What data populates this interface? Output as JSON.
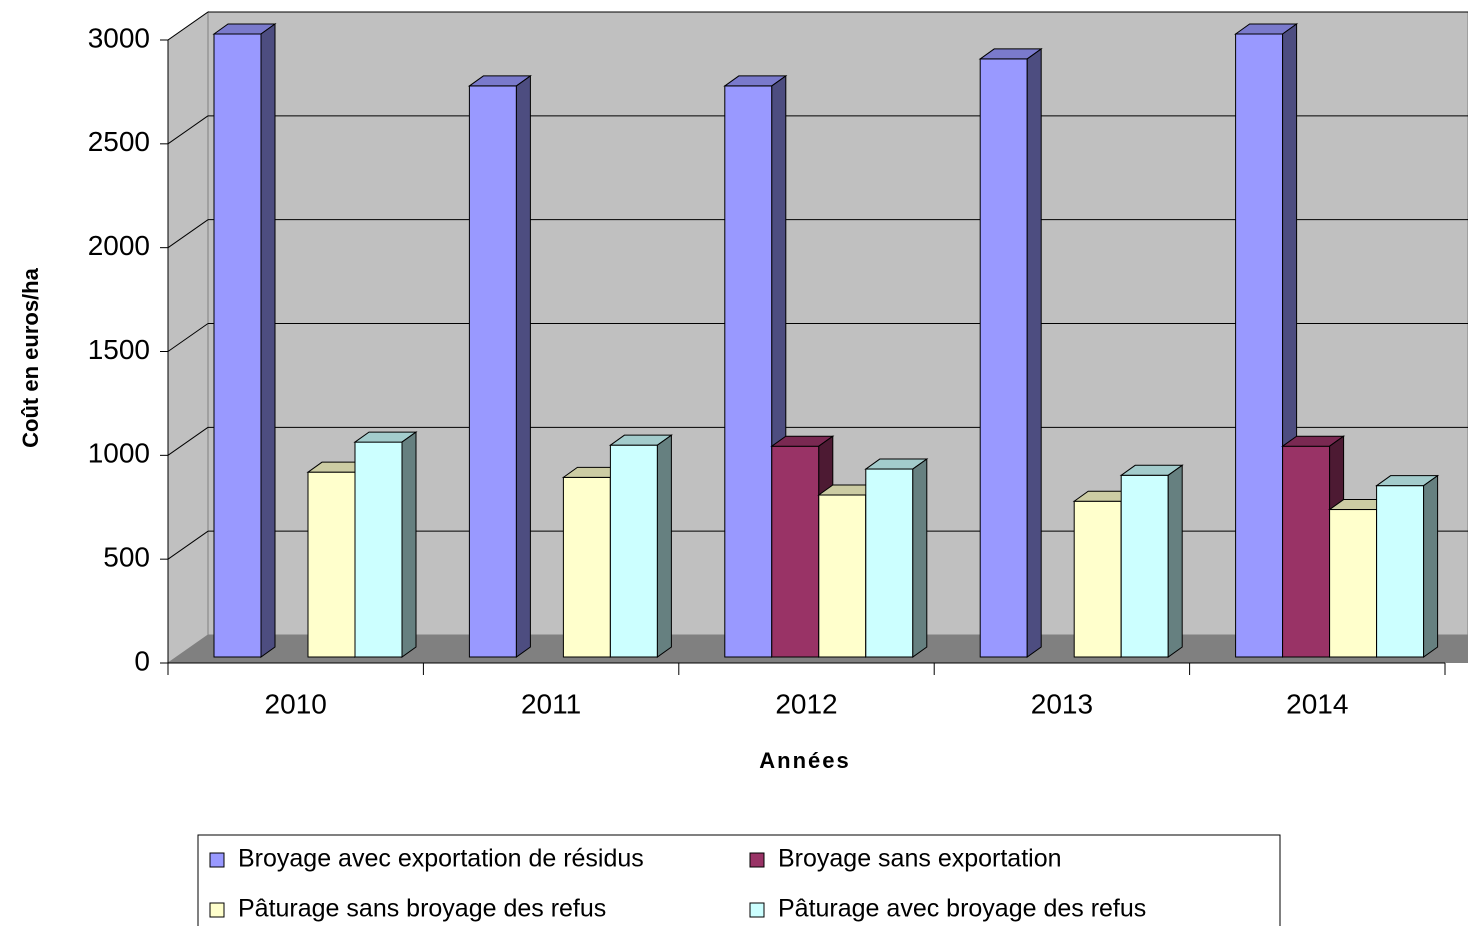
{
  "chart_data": {
    "type": "bar3d",
    "y_label": "Coût en euros/ha",
    "x_label": "Années",
    "categories": [
      "2010",
      "2011",
      "2012",
      "2013",
      "2014"
    ],
    "series": [
      {
        "name": "Broyage avec exportation de résidus",
        "color": "#9999ff",
        "values": [
          3000,
          2750,
          2750,
          2880,
          3000
        ]
      },
      {
        "name": "Broyage sans exportation",
        "color": "#993366",
        "values": [
          null,
          null,
          1015,
          null,
          1015
        ]
      },
      {
        "name": "Pâturage sans broyage des refus",
        "color": "#ffffcc",
        "values": [
          890,
          865,
          780,
          750,
          710
        ]
      },
      {
        "name": "Pâturage avec broyage des refus",
        "color": "#ccffff",
        "values": [
          1035,
          1020,
          905,
          875,
          825
        ]
      }
    ],
    "ylim": [
      0,
      3000
    ],
    "yticks": [
      0,
      500,
      1000,
      1500,
      2000,
      2500,
      3000
    ],
    "grid": true
  }
}
